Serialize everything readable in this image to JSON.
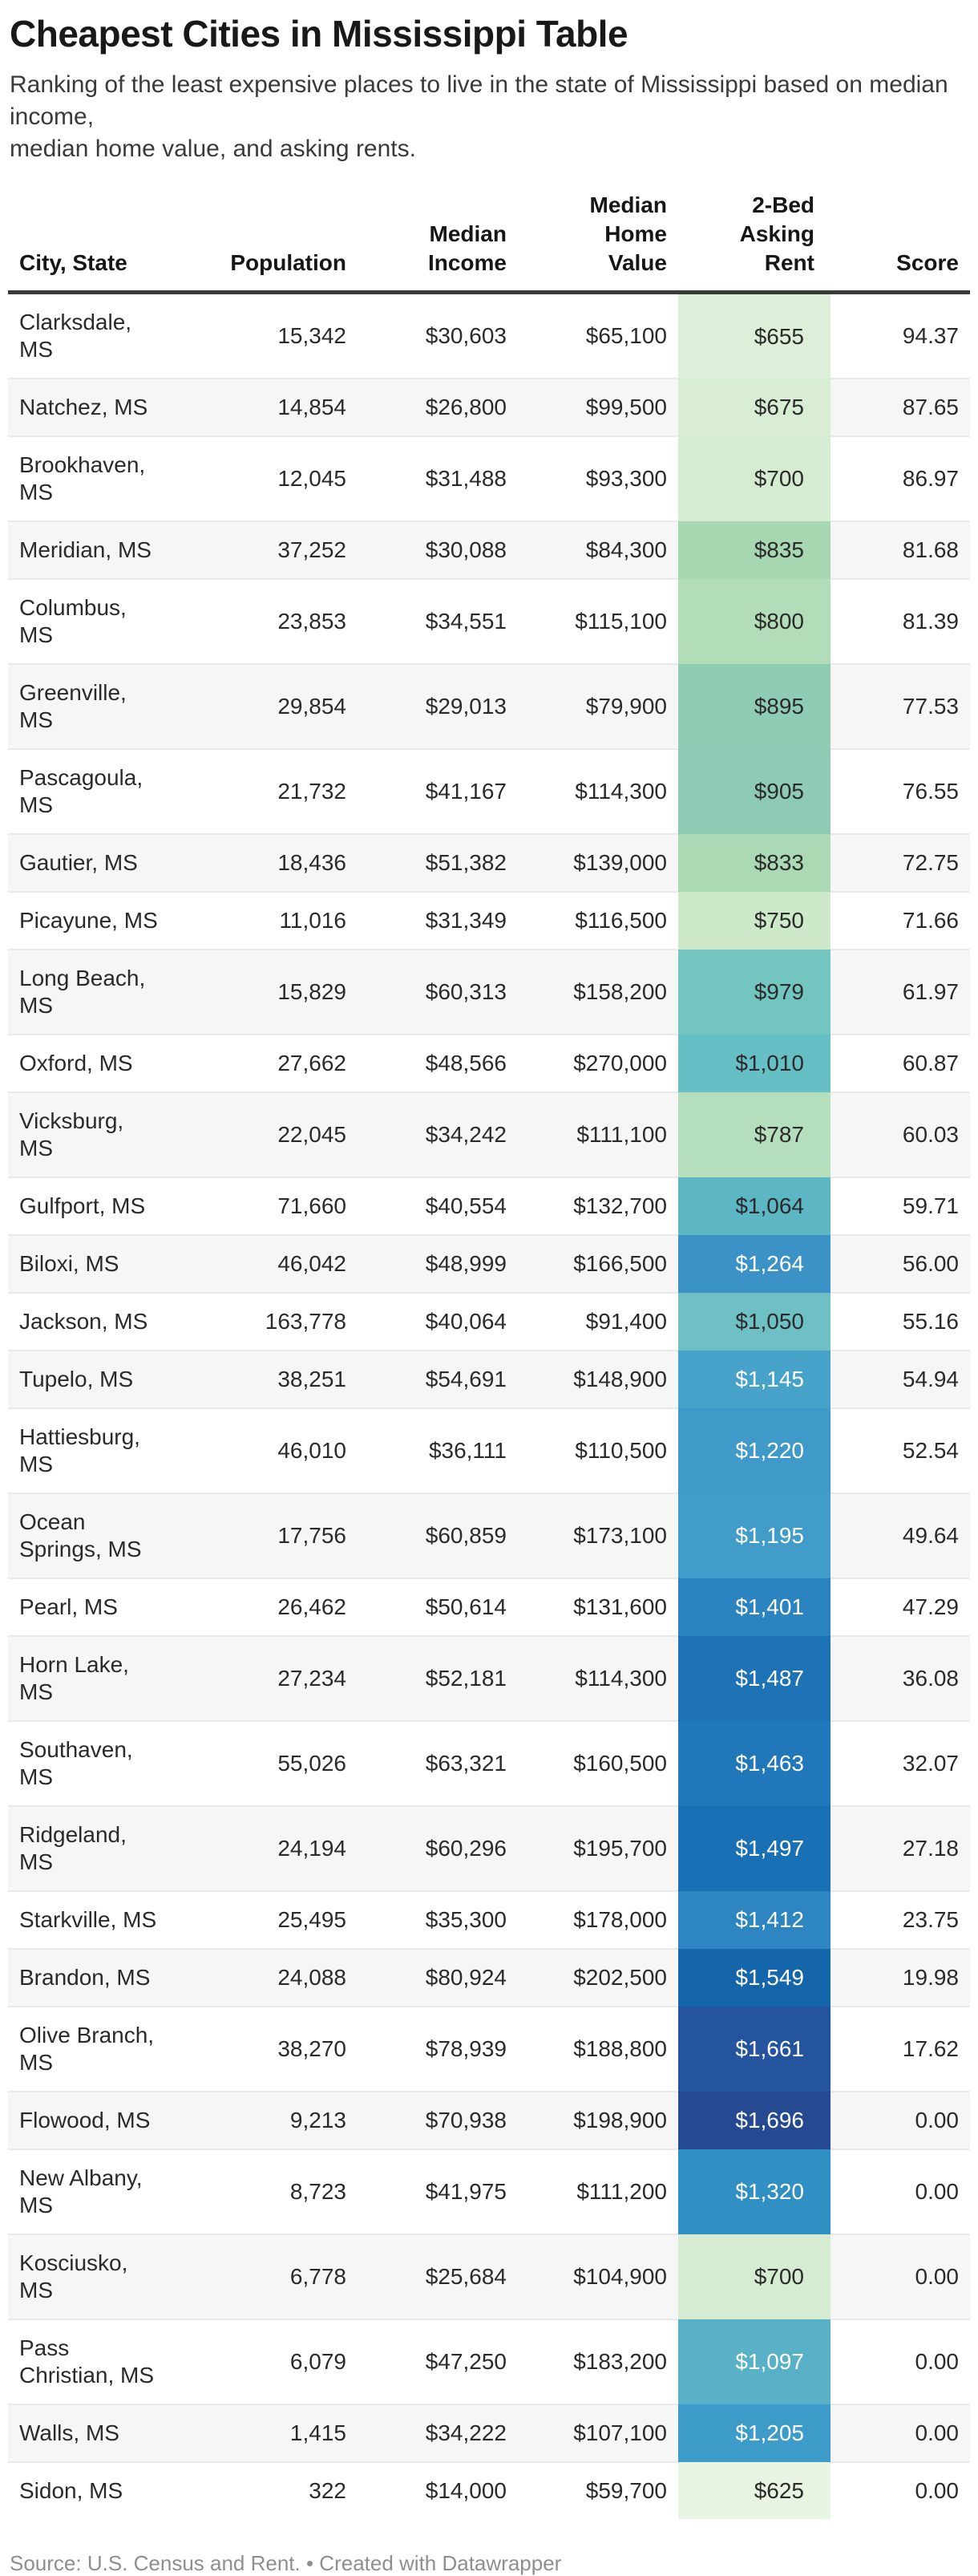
{
  "page": {
    "title": "Cheapest Cities in Mississippi Table",
    "description": "Ranking of the least expensive places to live in the state of Mississippi based on median income,\nmedian home value, and asking rents.",
    "footer": "Source: U.S. Census and Rent. • Created with Datawrapper"
  },
  "chart_data": {
    "type": "table",
    "title": "Cheapest Cities in Mississippi Table",
    "heatmap_column": "2-Bed Asking Rent",
    "columns": [
      {
        "key": "city",
        "label": "City, State",
        "align": "left"
      },
      {
        "key": "population",
        "label": "Population",
        "align": "right"
      },
      {
        "key": "income",
        "label": "Median\nIncome",
        "align": "right"
      },
      {
        "key": "home_value",
        "label": "Median\nHome\nValue",
        "align": "right"
      },
      {
        "key": "rent",
        "label": "2-Bed\nAsking\nRent",
        "align": "right"
      },
      {
        "key": "score",
        "label": "Score",
        "align": "right"
      }
    ],
    "rows": [
      {
        "city": "Clarksdale,\nMS",
        "population": "15,342",
        "income": "$30,603",
        "home_value": "$65,100",
        "rent": "$655",
        "score": "94.37",
        "rent_bg": "#ddefd9",
        "rent_fg": "#2a2a2a"
      },
      {
        "city": "Natchez, MS",
        "population": "14,854",
        "income": "$26,800",
        "home_value": "$99,500",
        "rent": "$675",
        "score": "87.65",
        "rent_bg": "#d9edd5",
        "rent_fg": "#2a2a2a"
      },
      {
        "city": "Brookhaven,\nMS",
        "population": "12,045",
        "income": "$31,488",
        "home_value": "$93,300",
        "rent": "$700",
        "score": "86.97",
        "rent_bg": "#d6ecd1",
        "rent_fg": "#2a2a2a"
      },
      {
        "city": "Meridian, MS",
        "population": "37,252",
        "income": "$30,088",
        "home_value": "$84,300",
        "rent": "$835",
        "score": "81.68",
        "rent_bg": "#a6d7b1",
        "rent_fg": "#2a2a2a"
      },
      {
        "city": "Columbus,\nMS",
        "population": "23,853",
        "income": "$34,551",
        "home_value": "$115,100",
        "rent": "$800",
        "score": "81.39",
        "rent_bg": "#b3ddb9",
        "rent_fg": "#2a2a2a"
      },
      {
        "city": "Greenville,\nMS",
        "population": "29,854",
        "income": "$29,013",
        "home_value": "$79,900",
        "rent": "$895",
        "score": "77.53",
        "rent_bg": "#8fccb4",
        "rent_fg": "#2a2a2a"
      },
      {
        "city": "Pascagoula,\nMS",
        "population": "21,732",
        "income": "$41,167",
        "home_value": "$114,300",
        "rent": "$905",
        "score": "76.55",
        "rent_bg": "#8dcbb5",
        "rent_fg": "#2a2a2a"
      },
      {
        "city": "Gautier, MS",
        "population": "18,436",
        "income": "$51,382",
        "home_value": "$139,000",
        "rent": "$833",
        "score": "72.75",
        "rent_bg": "#aad9b4",
        "rent_fg": "#2a2a2a"
      },
      {
        "city": "Picayune, MS",
        "population": "11,016",
        "income": "$31,349",
        "home_value": "$116,500",
        "rent": "$750",
        "score": "71.66",
        "rent_bg": "#cde9c9",
        "rent_fg": "#2a2a2a"
      },
      {
        "city": "Long Beach,\nMS",
        "population": "15,829",
        "income": "$60,313",
        "home_value": "$158,200",
        "rent": "$979",
        "score": "61.97",
        "rent_bg": "#73c5c0",
        "rent_fg": "#2a2a2a"
      },
      {
        "city": "Oxford, MS",
        "population": "27,662",
        "income": "$48,566",
        "home_value": "$270,000",
        "rent": "$1,010",
        "score": "60.87",
        "rent_bg": "#67bfc6",
        "rent_fg": "#2a2a2a"
      },
      {
        "city": "Vicksburg,\nMS",
        "population": "22,045",
        "income": "$34,242",
        "home_value": "$111,100",
        "rent": "$787",
        "score": "60.03",
        "rent_bg": "#b4debc",
        "rent_fg": "#2a2a2a"
      },
      {
        "city": "Gulfport, MS",
        "population": "71,660",
        "income": "$40,554",
        "home_value": "$132,700",
        "rent": "$1,064",
        "score": "59.71",
        "rent_bg": "#5db6c3",
        "rent_fg": "#2a2a2a"
      },
      {
        "city": "Biloxi, MS",
        "population": "46,042",
        "income": "$48,999",
        "home_value": "$166,500",
        "rent": "$1,264",
        "score": "56.00",
        "rent_bg": "#3a92c7",
        "rent_fg": "#ffffff"
      },
      {
        "city": "Jackson, MS",
        "population": "163,778",
        "income": "$40,064",
        "home_value": "$91,400",
        "rent": "$1,050",
        "score": "55.16",
        "rent_bg": "#6fc0c4",
        "rent_fg": "#2a2a2a"
      },
      {
        "city": "Tupelo, MS",
        "population": "38,251",
        "income": "$54,691",
        "home_value": "$148,900",
        "rent": "$1,145",
        "score": "54.94",
        "rent_bg": "#47a2ca",
        "rent_fg": "#ffffff"
      },
      {
        "city": "Hattiesburg,\nMS",
        "population": "46,010",
        "income": "$36,111",
        "home_value": "$110,500",
        "rent": "$1,220",
        "score": "52.54",
        "rent_bg": "#3f99c9",
        "rent_fg": "#ffffff"
      },
      {
        "city": "Ocean\nSprings, MS",
        "population": "17,756",
        "income": "$60,859",
        "home_value": "$173,100",
        "rent": "$1,195",
        "score": "49.64",
        "rent_bg": "#429cc9",
        "rent_fg": "#ffffff"
      },
      {
        "city": "Pearl, MS",
        "population": "26,462",
        "income": "$50,614",
        "home_value": "$131,600",
        "rent": "$1,401",
        "score": "47.29",
        "rent_bg": "#2b83c0",
        "rent_fg": "#ffffff"
      },
      {
        "city": "Horn Lake,\nMS",
        "population": "27,234",
        "income": "$52,181",
        "home_value": "$114,300",
        "rent": "$1,487",
        "score": "36.08",
        "rent_bg": "#1e73b7",
        "rent_fg": "#ffffff"
      },
      {
        "city": "Southaven,\nMS",
        "population": "55,026",
        "income": "$63,321",
        "home_value": "$160,500",
        "rent": "$1,463",
        "score": "32.07",
        "rent_bg": "#2077ba",
        "rent_fg": "#ffffff"
      },
      {
        "city": "Ridgeland,\nMS",
        "population": "24,194",
        "income": "$60,296",
        "home_value": "$195,700",
        "rent": "$1,497",
        "score": "27.18",
        "rent_bg": "#1a70b4",
        "rent_fg": "#ffffff"
      },
      {
        "city": "Starkville, MS",
        "population": "25,495",
        "income": "$35,300",
        "home_value": "$178,000",
        "rent": "$1,412",
        "score": "23.75",
        "rent_bg": "#2d85c1",
        "rent_fg": "#ffffff"
      },
      {
        "city": "Brandon, MS",
        "population": "24,088",
        "income": "$80,924",
        "home_value": "$202,500",
        "rent": "$1,549",
        "score": "19.98",
        "rent_bg": "#1565aa",
        "rent_fg": "#ffffff"
      },
      {
        "city": "Olive Branch,\nMS",
        "population": "38,270",
        "income": "$78,939",
        "home_value": "$188,800",
        "rent": "$1,661",
        "score": "17.62",
        "rent_bg": "#23549d",
        "rent_fg": "#ffffff"
      },
      {
        "city": "Flowood, MS",
        "population": "9,213",
        "income": "$70,938",
        "home_value": "$198,900",
        "rent": "$1,696",
        "score": "0.00",
        "rent_bg": "#264a92",
        "rent_fg": "#ffffff"
      },
      {
        "city": "New Albany,\nMS",
        "population": "8,723",
        "income": "$41,975",
        "home_value": "$111,200",
        "rent": "$1,320",
        "score": "0.00",
        "rent_bg": "#3090c4",
        "rent_fg": "#ffffff"
      },
      {
        "city": "Kosciusko,\nMS",
        "population": "6,778",
        "income": "$25,684",
        "home_value": "$104,900",
        "rent": "$700",
        "score": "0.00",
        "rent_bg": "#d6ecd2",
        "rent_fg": "#2a2a2a"
      },
      {
        "city": "Pass\nChristian, MS",
        "population": "6,079",
        "income": "$47,250",
        "home_value": "$183,200",
        "rent": "$1,097",
        "score": "0.00",
        "rent_bg": "#58b1c6",
        "rent_fg": "#ffffff"
      },
      {
        "city": "Walls, MS",
        "population": "1,415",
        "income": "$34,222",
        "home_value": "$107,100",
        "rent": "$1,205",
        "score": "0.00",
        "rent_bg": "#3d9bc9",
        "rent_fg": "#ffffff"
      },
      {
        "city": "Sidon, MS",
        "population": "322",
        "income": "$14,000",
        "home_value": "$59,700",
        "rent": "$625",
        "score": "0.00",
        "rent_bg": "#e8f5e3",
        "rent_fg": "#2a2a2a"
      }
    ],
    "layout_hints": {
      "striped_rows": "even rows #f6f6f6",
      "heatmap_scale_low_color": "#e8f5e3",
      "heatmap_scale_high_color": "#264a92"
    }
  }
}
